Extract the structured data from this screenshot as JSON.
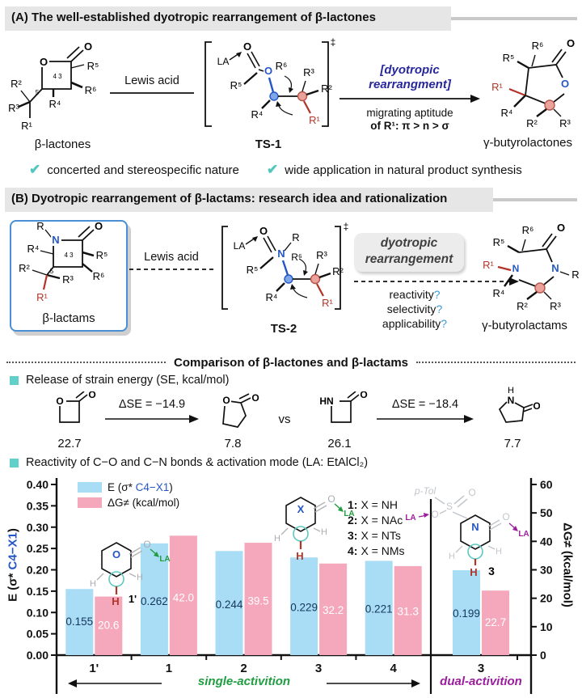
{
  "panel_a": {
    "title": "(A) The well-established dyotropic rearrangement of β-lactones",
    "reactant_label": "β-lactones",
    "arrow1_label": "Lewis acid",
    "ts_label": "TS-1",
    "rearr_line1": "[dyotropic",
    "rearr_line2": "rearrangment]",
    "mig_line1": "migrating aptitude",
    "mig_line2": "of R¹: π > n > σ",
    "product_label": "γ-butyrolactones",
    "check1": "concerted and stereospecific nature",
    "check2": "wide application in natural product synthesis"
  },
  "panel_b": {
    "title": "(B) Dyotropic rearrangement of β-lactams: research idea and rationalization",
    "reactant_label": "β-lactams",
    "arrow1_label": "Lewis acid",
    "ts_label": "TS-2",
    "box_line1": "dyotropic",
    "box_line2": "rearrangement",
    "q": [
      "reactivity",
      "selectivity",
      "applicability"
    ],
    "qm": "?",
    "product_label": "γ-butyrolactams"
  },
  "comparison": {
    "heading": "Comparison of β-lactones and β-lactams",
    "strain_heading": "Release of strain energy (SE, kcal/mol)",
    "delta1": "ΔSE = −14.9",
    "delta2": "ΔSE = −18.4",
    "vs": "vs",
    "values": [
      "22.7",
      "7.8",
      "26.1",
      "7.7"
    ],
    "reactivity_heading": "Reactivity of C−O and C−N bonds & activation mode (LA: EtAlCl₂)"
  },
  "glyphs": {
    "R": "R",
    "R1": "R¹",
    "R2": "R²",
    "R3": "R³",
    "R4": "R⁴",
    "R5": "R⁵",
    "R6": "R⁶",
    "O": "O",
    "N": "N",
    "H": "H",
    "HN": "HN",
    "X": "X",
    "S": "S",
    "LA": "LA",
    "pTol": "p-Tol",
    "dagger": "‡",
    "ring43": "4 3",
    "ring5": "5",
    "one_prime": "1'",
    "three": "3",
    "check": "✔"
  },
  "colors": {
    "teal": "#63cfc9",
    "blue_atom": "#2457c5",
    "red_atom": "#b03427",
    "navy": "#28289b",
    "green": "#1f9d40",
    "purple": "#9b1d9e",
    "bar_blue": "#a8ddf5",
    "bar_pink": "#f5a8bc",
    "blue_label": "#16365c",
    "pink_label": "#ffffff"
  },
  "chart_data": {
    "type": "bar",
    "categories": [
      "1'",
      "1",
      "2",
      "3",
      "4",
      "3"
    ],
    "separator_before_index": 5,
    "series": [
      {
        "name": "E (σ* C4−X1)",
        "axis": "left",
        "color": "#a8ddf5",
        "values": [
          0.155,
          0.262,
          0.244,
          0.229,
          0.221,
          0.199
        ],
        "labels": [
          "0.155",
          "0.262",
          "0.244",
          "0.229",
          "0.221",
          "0.199"
        ],
        "label_color": "#16365c"
      },
      {
        "name": "ΔG≠ (kcal/mol)",
        "axis": "right",
        "color": "#f5a8bc",
        "values": [
          20.6,
          42.0,
          39.5,
          32.2,
          31.3,
          22.7
        ],
        "labels": [
          "20.6",
          "42.0",
          "39.5",
          "32.2",
          "31.3",
          "22.7"
        ],
        "label_color": "#ffffff"
      }
    ],
    "left_axis": {
      "prefix": "E (σ* ",
      "term": "C4−X1",
      "suffix": ")",
      "min": 0,
      "max": 0.4,
      "step": 0.05,
      "decimals": 2
    },
    "right_axis": {
      "label": "ΔG≠ (kcal/mol)",
      "min": 0,
      "max": 60,
      "step": 10,
      "decimals": 0
    },
    "legend": [
      {
        "prefix": "E (σ* ",
        "term": "C4−X1",
        "suffix": ")"
      },
      {
        "text": "ΔG≠ (kcal/mol)"
      }
    ],
    "x_items": [
      {
        "num": "1:",
        "text": "X = NH"
      },
      {
        "num": "2:",
        "text": "X = NAc"
      },
      {
        "num": "3:",
        "text": "X = NTs"
      },
      {
        "num": "4:",
        "text": "X = NMs"
      }
    ],
    "bottom": {
      "single": "single-activition",
      "dual": "dual-activition"
    },
    "grid": false,
    "legend_position": "top-left"
  }
}
